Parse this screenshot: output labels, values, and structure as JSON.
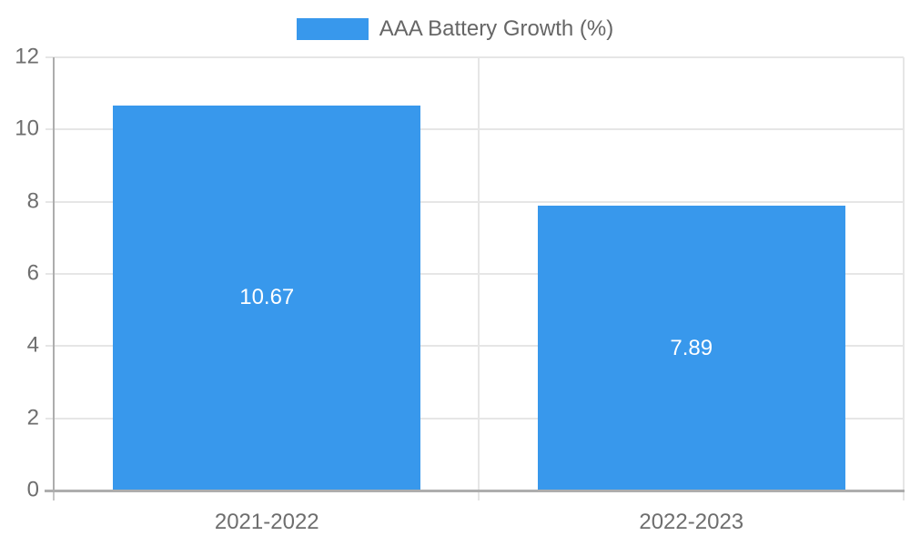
{
  "chart_data": {
    "type": "bar",
    "title": "",
    "xlabel": "",
    "ylabel": "",
    "legend": {
      "label": "AAA Battery Growth (%)",
      "position": "top"
    },
    "categories": [
      "2021-2022",
      "2022-2023"
    ],
    "series": [
      {
        "name": "AAA Battery Growth (%)",
        "values": [
          10.67,
          7.89
        ]
      }
    ],
    "value_labels": [
      "10.67",
      "7.89"
    ],
    "ylim": [
      0,
      12
    ],
    "yticks": [
      0,
      2,
      4,
      6,
      8,
      10,
      12
    ],
    "grid": true,
    "legend_position": "top",
    "colors": {
      "bar": "#3898EC",
      "legend_text": "#666666",
      "axis_text": "#6E6E6E",
      "gridline": "#E6E6E6",
      "axis_line": "#ADADAD",
      "axis_tick": "#C6C6C6",
      "value_label": "#FFFFFF",
      "background": "#FFFFFF"
    }
  }
}
